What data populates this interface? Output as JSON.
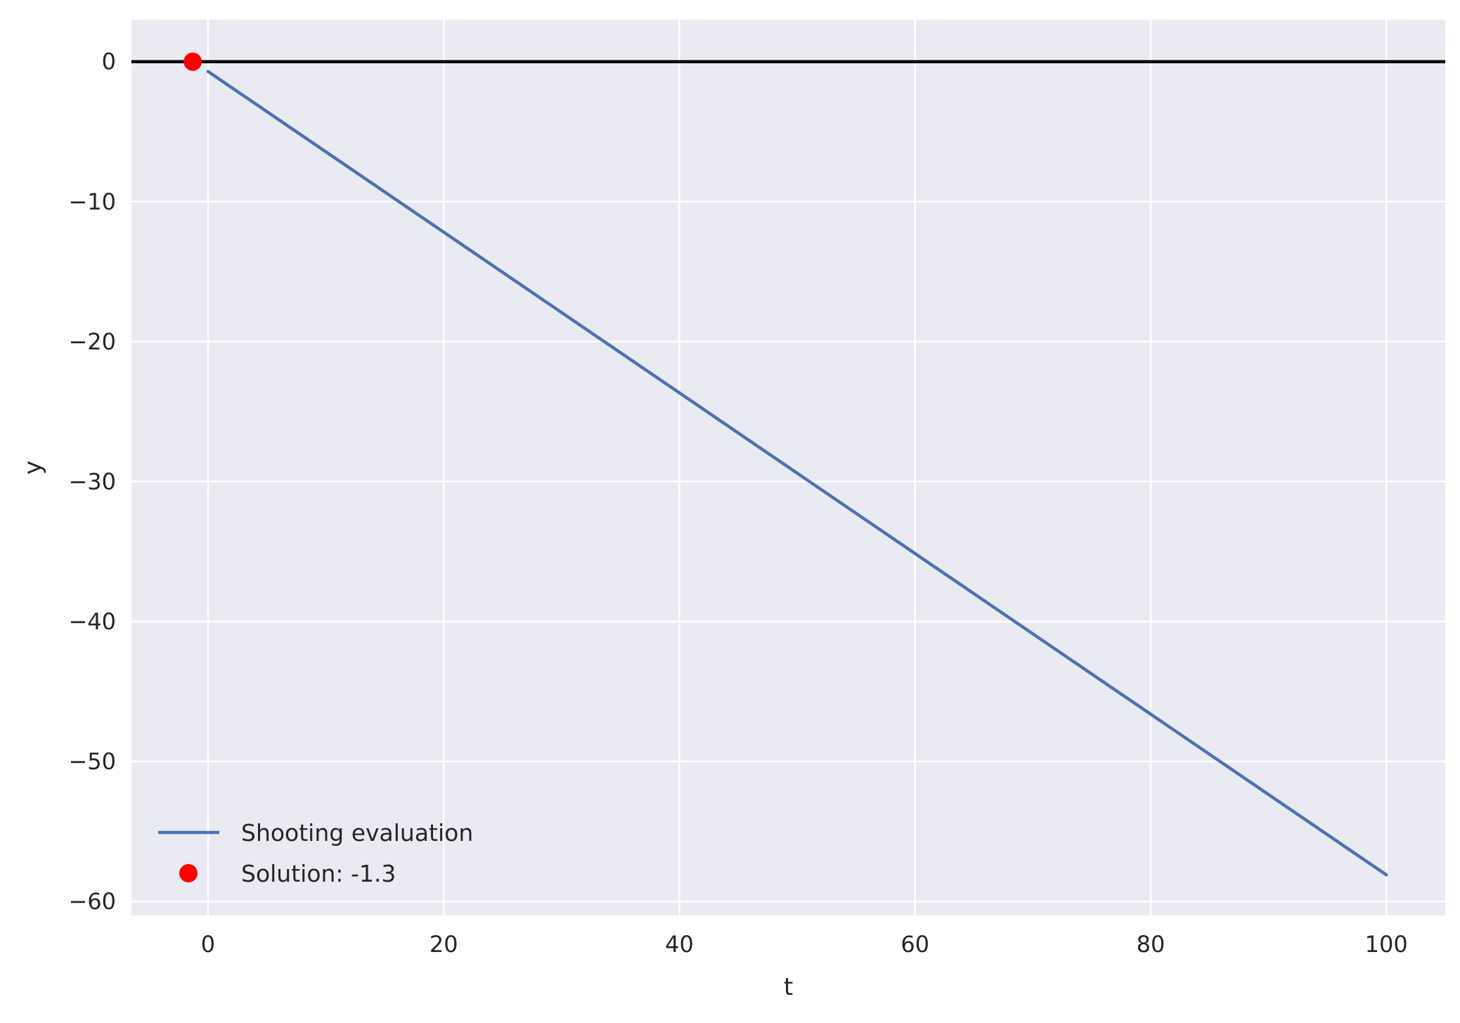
{
  "chart_data": {
    "type": "line",
    "title": "",
    "xlabel": "t",
    "ylabel": "y",
    "xlim": [
      -6.5,
      105
    ],
    "ylim": [
      -61,
      3
    ],
    "xticks": [
      0,
      20,
      40,
      60,
      80,
      100
    ],
    "yticks": [
      0,
      -10,
      -20,
      -30,
      -40,
      -50,
      -60
    ],
    "grid": true,
    "legend_position": "lower-left",
    "series": [
      {
        "name": "Shooting evaluation",
        "type": "line",
        "color": "#4c72b0",
        "x": [
          0,
          100
        ],
        "y": [
          -0.7,
          -58.1
        ]
      },
      {
        "name": "Solution: -1.3",
        "type": "point",
        "color": "#ff0000",
        "x": [
          -1.3
        ],
        "y": [
          0
        ]
      }
    ],
    "reference_lines": [
      {
        "orientation": "horizontal",
        "y": 0,
        "color": "#000000"
      }
    ]
  },
  "colors": {
    "plot_background": "#eaeaf2",
    "grid": "#ffffff",
    "text": "#262626"
  }
}
